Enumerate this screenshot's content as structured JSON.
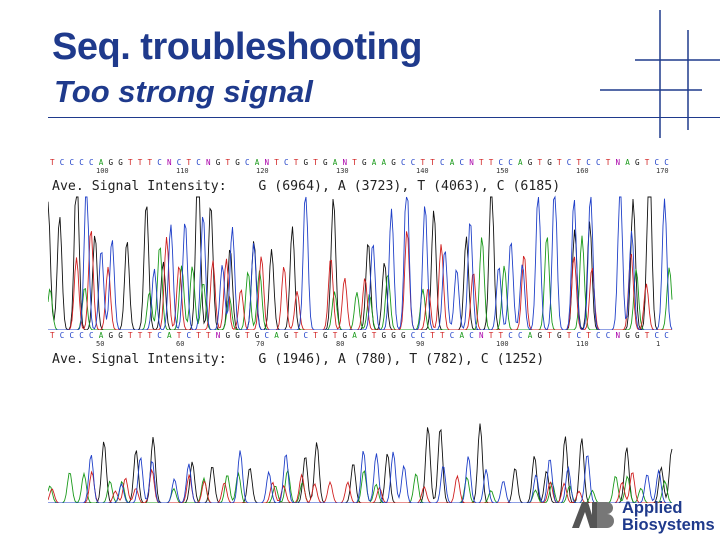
{
  "header": {
    "title": "Seq. troubleshooting",
    "subtitle": "Too strong signal"
  },
  "panels": [
    {
      "sequence": "TCCCCAGGTTTCNCTCNGTGCANTCTGTGANTGAAGCCTTCACNTTCCAGTGTCTCCTNAGTCCCAATACTNCAGGACTC",
      "positions": [
        "100",
        "110",
        "120",
        "130",
        "140",
        "150",
        "160",
        "170"
      ],
      "intensity_text": "Ave. Signal Intensity:    G (6964), A (3723), T (4063), C (6185)",
      "intensity": {
        "G": 6964,
        "A": 3723,
        "T": 4063,
        "C": 6185
      },
      "saturated": true
    },
    {
      "sequence": "TCCCCAGGTTTCATCTTNGGTGCAGTCTGTGAGTGGGCCTTCACNTTCCAGTGTCTCCNGGTCCCAATACTCAGGNCTCTCC",
      "positions": [
        "50",
        "60",
        "70",
        "80",
        "90",
        "100",
        "110",
        "1"
      ],
      "intensity_text": "Ave. Signal Intensity:    G (1946), A (780), T (782), C (1252)",
      "intensity": {
        "G": 1946,
        "A": 780,
        "T": 782,
        "C": 1252
      },
      "saturated": false
    }
  ],
  "base_colors": {
    "A": "#1a9a1a",
    "C": "#2040c8",
    "G": "#111111",
    "T": "#d02020",
    "N": "#aa00aa"
  },
  "colors": {
    "title": "#1f3a8c",
    "rule": "#1f3a8c"
  },
  "logo": {
    "mark": "AB",
    "line1": "Applied",
    "line2": "Biosystems"
  }
}
